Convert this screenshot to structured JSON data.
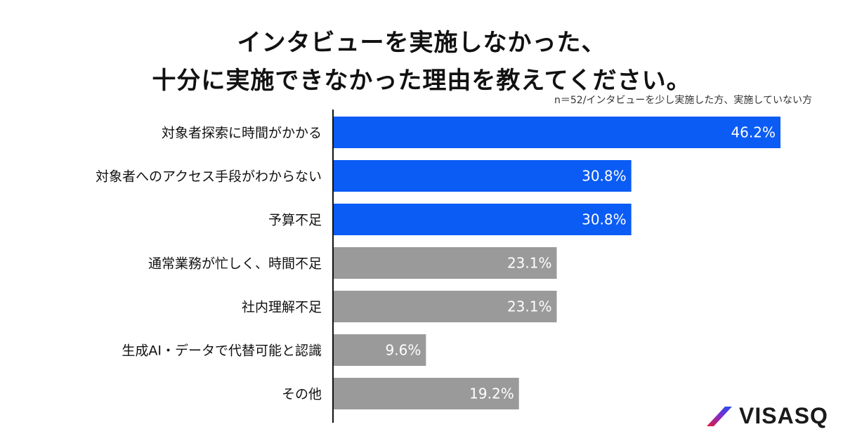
{
  "title": {
    "line1": "インタビューを実施しなかった、",
    "line2": "十分に実施できなかった理由を教えてください。"
  },
  "subtitle": "n＝52/インタビューを少し実施した方、実施していない方",
  "brand": {
    "name": "VISASQ"
  },
  "colors": {
    "highlight": "#0B5CF5",
    "neutral": "#9B9A9A",
    "axis": "#111111",
    "label_text": "#111111",
    "value_text": "#ffffff"
  },
  "chart_data": {
    "type": "bar",
    "orientation": "horizontal",
    "categories": [
      "対象者探索に時間がかかる",
      "対象者へのアクセス手段がわからない",
      "予算不足",
      "通常業務が忙しく、時間不足",
      "社内理解不足",
      "生成AI・データで代替可能と認識",
      "その他"
    ],
    "values": [
      46.2,
      30.8,
      30.8,
      23.1,
      23.1,
      9.6,
      19.2
    ],
    "value_labels": [
      "46.2%",
      "30.8%",
      "30.8%",
      "23.1%",
      "23.1%",
      "9.6%",
      "19.2%"
    ],
    "highlighted": [
      true,
      true,
      true,
      false,
      false,
      false,
      false
    ],
    "xlim": [
      0,
      50
    ],
    "grid": false,
    "legend": "none"
  }
}
